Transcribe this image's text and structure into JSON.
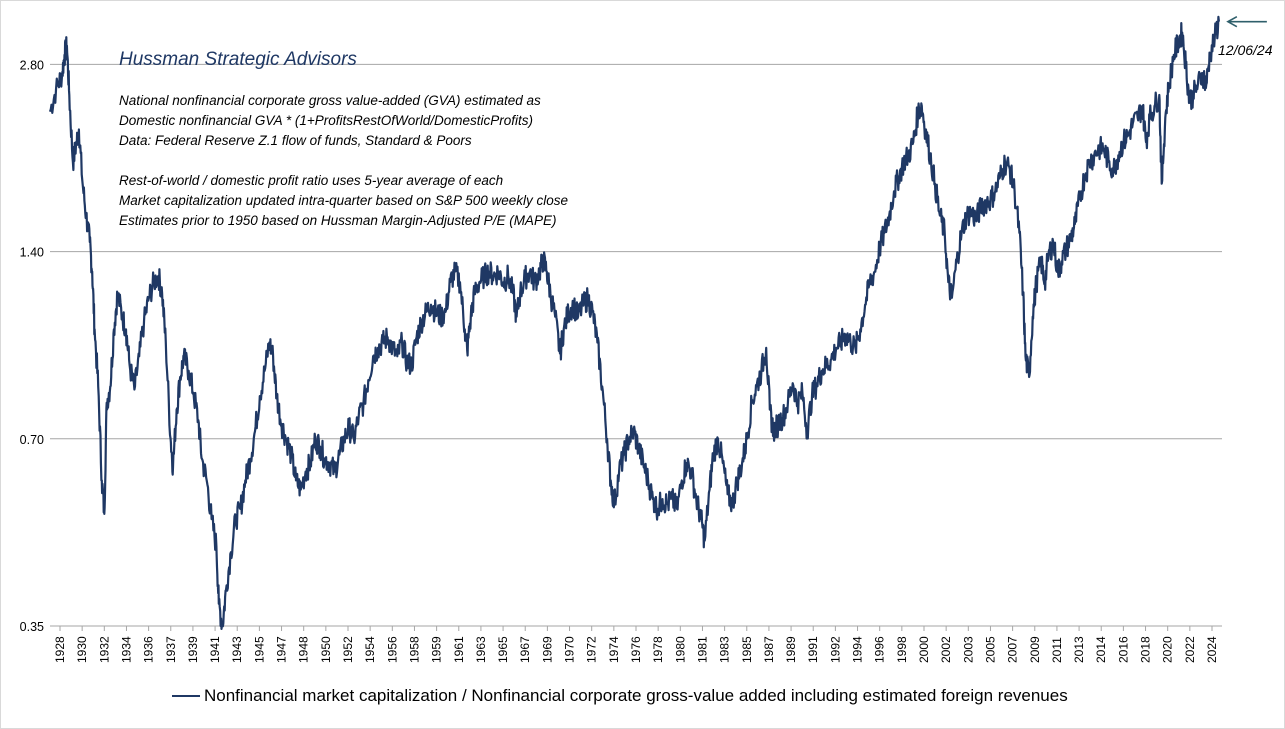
{
  "chart_data": {
    "type": "line",
    "yscale": "log",
    "ylim": [
      0.35,
      3.3
    ],
    "xlim": [
      1928,
      2025.2
    ],
    "yticks": [
      0.35,
      0.7,
      1.4,
      2.8
    ],
    "ytick_labels": [
      "0.35",
      "0.70",
      "1.40",
      "2.80"
    ],
    "grid": true,
    "xtick_labels": [
      "1928",
      "1930",
      "1932",
      "1934",
      "1936",
      "1937",
      "1939",
      "1941",
      "1943",
      "1945",
      "1947",
      "1948",
      "1950",
      "1952",
      "1954",
      "1956",
      "1958",
      "1959",
      "1961",
      "1963",
      "1965",
      "1967",
      "1969",
      "1970",
      "1972",
      "1974",
      "1976",
      "1978",
      "1980",
      "1981",
      "1983",
      "1985",
      "1987",
      "1989",
      "1991",
      "1992",
      "1994",
      "1996",
      "1998",
      "2000",
      "2002",
      "2003",
      "2005",
      "2007",
      "2009",
      "2011",
      "2013",
      "2014",
      "2016",
      "2018",
      "2020",
      "2022",
      "2024"
    ],
    "series": [
      {
        "name": "Nonfinancial market capitalization / Nonfinancial corporate gross-value added including estimated foreign revenues",
        "color": "#1f3864",
        "points": [
          [
            1928.0,
            2.35
          ],
          [
            1928.5,
            2.55
          ],
          [
            1929.0,
            2.7
          ],
          [
            1929.2,
            2.9
          ],
          [
            1929.4,
            3.0
          ],
          [
            1929.6,
            2.5
          ],
          [
            1929.9,
            1.95
          ],
          [
            1930.2,
            2.1
          ],
          [
            1930.4,
            2.2
          ],
          [
            1930.7,
            1.8
          ],
          [
            1931.0,
            1.6
          ],
          [
            1931.3,
            1.45
          ],
          [
            1931.5,
            1.3
          ],
          [
            1931.7,
            1.05
          ],
          [
            1932.0,
            0.85
          ],
          [
            1932.3,
            0.6
          ],
          [
            1932.5,
            0.53
          ],
          [
            1932.7,
            0.8
          ],
          [
            1933.0,
            0.85
          ],
          [
            1933.3,
            1.05
          ],
          [
            1933.6,
            1.2
          ],
          [
            1934.0,
            1.1
          ],
          [
            1934.3,
            1.05
          ],
          [
            1934.6,
            0.92
          ],
          [
            1935.0,
            0.84
          ],
          [
            1935.4,
            0.95
          ],
          [
            1935.8,
            1.08
          ],
          [
            1936.2,
            1.18
          ],
          [
            1936.6,
            1.25
          ],
          [
            1937.0,
            1.28
          ],
          [
            1937.3,
            1.2
          ],
          [
            1937.6,
            1.0
          ],
          [
            1938.0,
            0.7
          ],
          [
            1938.2,
            0.63
          ],
          [
            1938.5,
            0.78
          ],
          [
            1938.8,
            0.88
          ],
          [
            1939.1,
            0.95
          ],
          [
            1939.5,
            0.9
          ],
          [
            1939.9,
            0.83
          ],
          [
            1940.3,
            0.75
          ],
          [
            1940.6,
            0.65
          ],
          [
            1941.0,
            0.6
          ],
          [
            1941.4,
            0.52
          ],
          [
            1941.8,
            0.47
          ],
          [
            1942.0,
            0.38
          ],
          [
            1942.3,
            0.35
          ],
          [
            1942.6,
            0.4
          ],
          [
            1943.0,
            0.46
          ],
          [
            1943.4,
            0.52
          ],
          [
            1943.8,
            0.54
          ],
          [
            1944.2,
            0.6
          ],
          [
            1944.6,
            0.65
          ],
          [
            1945.0,
            0.72
          ],
          [
            1945.4,
            0.82
          ],
          [
            1945.8,
            0.9
          ],
          [
            1946.2,
            1.0
          ],
          [
            1946.5,
            0.95
          ],
          [
            1946.8,
            0.82
          ],
          [
            1947.2,
            0.74
          ],
          [
            1947.6,
            0.7
          ],
          [
            1948.0,
            0.66
          ],
          [
            1948.4,
            0.6
          ],
          [
            1948.8,
            0.58
          ],
          [
            1949.2,
            0.62
          ],
          [
            1949.6,
            0.64
          ],
          [
            1950.0,
            0.7
          ],
          [
            1950.4,
            0.68
          ],
          [
            1950.8,
            0.65
          ],
          [
            1951.2,
            0.64
          ],
          [
            1951.6,
            0.62
          ],
          [
            1952.0,
            0.66
          ],
          [
            1952.4,
            0.7
          ],
          [
            1952.8,
            0.73
          ],
          [
            1953.2,
            0.7
          ],
          [
            1953.6,
            0.76
          ],
          [
            1954.0,
            0.8
          ],
          [
            1954.4,
            0.87
          ],
          [
            1954.8,
            0.95
          ],
          [
            1955.2,
            0.98
          ],
          [
            1955.6,
            1.0
          ],
          [
            1956.0,
            1.02
          ],
          [
            1956.4,
            0.98
          ],
          [
            1956.8,
            0.95
          ],
          [
            1957.2,
            1.0
          ],
          [
            1957.6,
            0.93
          ],
          [
            1958.0,
            0.92
          ],
          [
            1958.4,
            1.02
          ],
          [
            1958.8,
            1.08
          ],
          [
            1959.2,
            1.12
          ],
          [
            1959.6,
            1.15
          ],
          [
            1960.0,
            1.12
          ],
          [
            1960.4,
            1.1
          ],
          [
            1960.8,
            1.12
          ],
          [
            1961.2,
            1.25
          ],
          [
            1961.6,
            1.3
          ],
          [
            1962.0,
            1.25
          ],
          [
            1962.4,
            1.05
          ],
          [
            1962.6,
            0.97
          ],
          [
            1962.9,
            1.1
          ],
          [
            1963.2,
            1.2
          ],
          [
            1963.6,
            1.25
          ],
          [
            1964.0,
            1.28
          ],
          [
            1964.4,
            1.3
          ],
          [
            1964.8,
            1.28
          ],
          [
            1965.2,
            1.3
          ],
          [
            1965.6,
            1.25
          ],
          [
            1966.0,
            1.28
          ],
          [
            1966.4,
            1.2
          ],
          [
            1966.7,
            1.1
          ],
          [
            1967.0,
            1.2
          ],
          [
            1967.4,
            1.27
          ],
          [
            1967.8,
            1.3
          ],
          [
            1968.2,
            1.25
          ],
          [
            1968.6,
            1.3
          ],
          [
            1968.9,
            1.36
          ],
          [
            1969.2,
            1.3
          ],
          [
            1969.5,
            1.2
          ],
          [
            1969.9,
            1.1
          ],
          [
            1970.3,
            0.96
          ],
          [
            1970.6,
            1.05
          ],
          [
            1971.0,
            1.12
          ],
          [
            1971.4,
            1.15
          ],
          [
            1971.8,
            1.1
          ],
          [
            1972.2,
            1.15
          ],
          [
            1972.6,
            1.18
          ],
          [
            1973.0,
            1.12
          ],
          [
            1973.4,
            1.0
          ],
          [
            1973.8,
            0.85
          ],
          [
            1974.2,
            0.7
          ],
          [
            1974.5,
            0.6
          ],
          [
            1974.8,
            0.55
          ],
          [
            1975.2,
            0.62
          ],
          [
            1975.6,
            0.66
          ],
          [
            1976.0,
            0.7
          ],
          [
            1976.4,
            0.72
          ],
          [
            1976.8,
            0.68
          ],
          [
            1977.2,
            0.64
          ],
          [
            1977.6,
            0.6
          ],
          [
            1978.0,
            0.56
          ],
          [
            1978.4,
            0.54
          ],
          [
            1978.8,
            0.56
          ],
          [
            1979.2,
            0.55
          ],
          [
            1979.6,
            0.56
          ],
          [
            1980.0,
            0.54
          ],
          [
            1980.4,
            0.6
          ],
          [
            1980.8,
            0.64
          ],
          [
            1981.2,
            0.62
          ],
          [
            1981.6,
            0.56
          ],
          [
            1982.0,
            0.52
          ],
          [
            1982.3,
            0.48
          ],
          [
            1982.7,
            0.58
          ],
          [
            1983.0,
            0.66
          ],
          [
            1983.4,
            0.7
          ],
          [
            1983.8,
            0.64
          ],
          [
            1984.2,
            0.57
          ],
          [
            1984.6,
            0.55
          ],
          [
            1985.0,
            0.6
          ],
          [
            1985.4,
            0.64
          ],
          [
            1985.8,
            0.7
          ],
          [
            1986.2,
            0.8
          ],
          [
            1986.6,
            0.85
          ],
          [
            1987.0,
            0.9
          ],
          [
            1987.4,
            0.98
          ],
          [
            1987.7,
            0.78
          ],
          [
            1988.0,
            0.72
          ],
          [
            1988.4,
            0.74
          ],
          [
            1988.8,
            0.76
          ],
          [
            1989.2,
            0.8
          ],
          [
            1989.6,
            0.86
          ],
          [
            1990.0,
            0.8
          ],
          [
            1990.4,
            0.83
          ],
          [
            1990.8,
            0.72
          ],
          [
            1991.2,
            0.82
          ],
          [
            1991.6,
            0.86
          ],
          [
            1992.0,
            0.9
          ],
          [
            1992.4,
            0.92
          ],
          [
            1992.8,
            0.94
          ],
          [
            1993.2,
            0.98
          ],
          [
            1993.6,
            1.0
          ],
          [
            1994.0,
            1.03
          ],
          [
            1994.4,
            1.0
          ],
          [
            1994.8,
            0.98
          ],
          [
            1995.2,
            1.05
          ],
          [
            1995.6,
            1.15
          ],
          [
            1996.0,
            1.25
          ],
          [
            1996.4,
            1.3
          ],
          [
            1996.8,
            1.42
          ],
          [
            1997.2,
            1.5
          ],
          [
            1997.6,
            1.6
          ],
          [
            1998.0,
            1.75
          ],
          [
            1998.4,
            1.85
          ],
          [
            1998.8,
            1.95
          ],
          [
            1999.2,
            2.0
          ],
          [
            1999.6,
            2.1
          ],
          [
            2000.0,
            2.35
          ],
          [
            2000.3,
            2.4
          ],
          [
            2000.6,
            2.2
          ],
          [
            2001.0,
            2.0
          ],
          [
            2001.4,
            1.8
          ],
          [
            2001.8,
            1.6
          ],
          [
            2002.2,
            1.5
          ],
          [
            2002.5,
            1.25
          ],
          [
            2002.8,
            1.18
          ],
          [
            2003.2,
            1.35
          ],
          [
            2003.6,
            1.5
          ],
          [
            2004.0,
            1.6
          ],
          [
            2004.4,
            1.62
          ],
          [
            2004.8,
            1.58
          ],
          [
            2005.2,
            1.65
          ],
          [
            2005.6,
            1.68
          ],
          [
            2006.0,
            1.7
          ],
          [
            2006.4,
            1.75
          ],
          [
            2006.8,
            1.85
          ],
          [
            2007.2,
            1.95
          ],
          [
            2007.6,
            1.9
          ],
          [
            2008.0,
            1.75
          ],
          [
            2008.4,
            1.5
          ],
          [
            2008.7,
            1.2
          ],
          [
            2008.9,
            0.95
          ],
          [
            2009.2,
            0.88
          ],
          [
            2009.5,
            1.1
          ],
          [
            2009.8,
            1.25
          ],
          [
            2010.2,
            1.35
          ],
          [
            2010.5,
            1.25
          ],
          [
            2010.8,
            1.38
          ],
          [
            2011.2,
            1.45
          ],
          [
            2011.6,
            1.3
          ],
          [
            2011.9,
            1.35
          ],
          [
            2012.3,
            1.42
          ],
          [
            2012.7,
            1.48
          ],
          [
            2013.0,
            1.55
          ],
          [
            2013.4,
            1.7
          ],
          [
            2013.8,
            1.85
          ],
          [
            2014.2,
            1.95
          ],
          [
            2014.6,
            2.0
          ],
          [
            2015.0,
            2.05
          ],
          [
            2015.4,
            2.05
          ],
          [
            2015.8,
            1.95
          ],
          [
            2016.2,
            1.9
          ],
          [
            2016.6,
            2.0
          ],
          [
            2017.0,
            2.1
          ],
          [
            2017.4,
            2.15
          ],
          [
            2017.8,
            2.25
          ],
          [
            2018.2,
            2.3
          ],
          [
            2018.6,
            2.4
          ],
          [
            2018.9,
            2.1
          ],
          [
            2019.2,
            2.3
          ],
          [
            2019.6,
            2.4
          ],
          [
            2020.0,
            2.5
          ],
          [
            2020.2,
            1.8
          ],
          [
            2020.5,
            2.3
          ],
          [
            2020.8,
            2.6
          ],
          [
            2021.2,
            2.9
          ],
          [
            2021.6,
            3.05
          ],
          [
            2021.9,
            3.15
          ],
          [
            2022.2,
            2.8
          ],
          [
            2022.5,
            2.45
          ],
          [
            2022.8,
            2.5
          ],
          [
            2023.2,
            2.6
          ],
          [
            2023.6,
            2.7
          ],
          [
            2023.9,
            2.6
          ],
          [
            2024.2,
            2.9
          ],
          [
            2024.6,
            3.1
          ],
          [
            2024.94,
            3.28
          ]
        ]
      }
    ],
    "legend": "bottom",
    "legend_label": "Nonfinancial market capitalization / Nonfinancial corporate gross-value added including estimated foreign revenues"
  },
  "brand": "Hussman Strategic Advisors",
  "notes": [
    "National nonfinancial corporate gross value-added (GVA) estimated as",
    "Domestic nonfinancial GVA * (1+ProfitsRestOfWorld/DomesticProfits)",
    "Data: Federal Reserve Z.1 flow of funds, Standard & Poors",
    "",
    "Rest-of-world / domestic profit ratio uses 5-year average of each",
    "Market capitalization updated intra-quarter based on S&P 500 weekly close",
    "Estimates prior to 1950 based on Hussman Margin-Adjusted P/E (MAPE)"
  ],
  "annotation": "12/06/24",
  "colors": {
    "line": "#1f3864",
    "arrow": "#2f5f6b",
    "grid": "#a6a6a6"
  }
}
